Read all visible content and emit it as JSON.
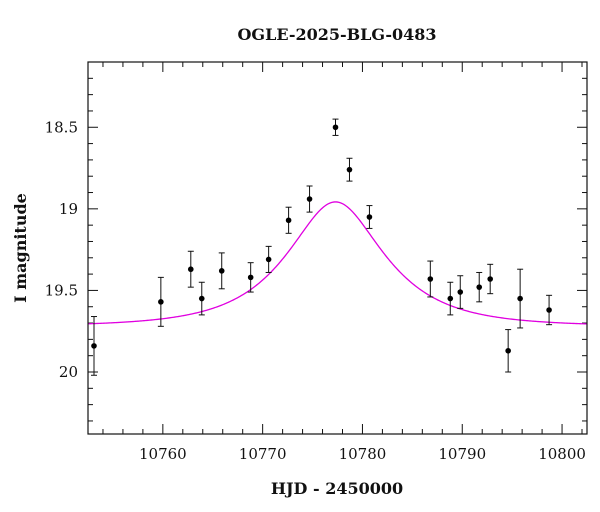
{
  "chart_data": {
    "type": "scatter",
    "title": "OGLE-2025-BLG-0483",
    "xlabel": "HJD - 2450000",
    "ylabel": "I magnitude",
    "xlim": [
      10752.5,
      10802.5
    ],
    "ylim": [
      20.38,
      18.1
    ],
    "y_inverted": true,
    "x_ticks": [
      10760,
      10770,
      10780,
      10790,
      10800
    ],
    "x_tick_labels": [
      "10760",
      "10770",
      "10780",
      "10790",
      "10800"
    ],
    "y_ticks": [
      18.5,
      19,
      19.5,
      20
    ],
    "y_tick_labels": [
      "18.5",
      "19",
      "19.5",
      "20"
    ],
    "x_minor_step": 2,
    "y_minor_step": 0.1,
    "series": [
      {
        "type": "scatter_with_errorbars",
        "color": "#000000",
        "points": [
          {
            "x": 10753.1,
            "y": 19.84,
            "err": 0.18
          },
          {
            "x": 10759.8,
            "y": 19.57,
            "err": 0.15
          },
          {
            "x": 10762.8,
            "y": 19.37,
            "err": 0.11
          },
          {
            "x": 10763.9,
            "y": 19.55,
            "err": 0.1
          },
          {
            "x": 10765.9,
            "y": 19.38,
            "err": 0.11
          },
          {
            "x": 10768.8,
            "y": 19.42,
            "err": 0.09
          },
          {
            "x": 10770.6,
            "y": 19.31,
            "err": 0.08
          },
          {
            "x": 10772.6,
            "y": 19.07,
            "err": 0.08
          },
          {
            "x": 10774.7,
            "y": 18.94,
            "err": 0.08
          },
          {
            "x": 10777.3,
            "y": 18.5,
            "err": 0.05
          },
          {
            "x": 10778.7,
            "y": 18.76,
            "err": 0.07
          },
          {
            "x": 10780.7,
            "y": 19.05,
            "err": 0.07
          },
          {
            "x": 10786.8,
            "y": 19.43,
            "err": 0.11
          },
          {
            "x": 10788.8,
            "y": 19.55,
            "err": 0.1
          },
          {
            "x": 10789.8,
            "y": 19.51,
            "err": 0.1
          },
          {
            "x": 10791.7,
            "y": 19.48,
            "err": 0.09
          },
          {
            "x": 10792.8,
            "y": 19.43,
            "err": 0.09
          },
          {
            "x": 10794.6,
            "y": 19.87,
            "err": 0.13
          },
          {
            "x": 10795.8,
            "y": 19.55,
            "err": 0.18
          },
          {
            "x": 10798.7,
            "y": 19.62,
            "err": 0.09
          }
        ]
      },
      {
        "type": "model_curve",
        "color": "#e000e0",
        "model": "point-lens",
        "params": {
          "t0": 10777.3,
          "tE": 8.0,
          "u0": 0.55,
          "I_base": 19.72
        }
      }
    ],
    "grid": false,
    "legend": "none"
  }
}
